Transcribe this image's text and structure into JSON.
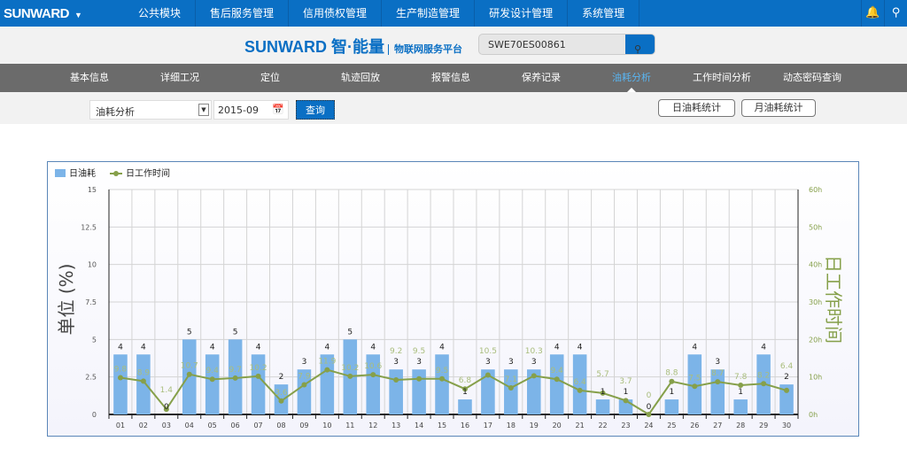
{
  "topbar": {
    "logo": "SUNWARD",
    "menu": [
      "公共模块",
      "售后服务管理",
      "信用债权管理",
      "生产制造管理",
      "研发设计管理",
      "系统管理"
    ]
  },
  "header": {
    "brand": "SUNWARD 智·能量",
    "platform": "物联网服务平台",
    "search_value": "SWE70ES00861"
  },
  "subnav": {
    "items": [
      "基本信息",
      "详细工况",
      "定位",
      "轨迹回放",
      "报警信息",
      "保养记录",
      "油耗分析",
      "工作时间分析",
      "动态密码查询"
    ],
    "active": 6
  },
  "filter": {
    "type": "油耗分析",
    "date": "2015-09",
    "query": "查询",
    "daily": "日油耗统计",
    "monthly": "月油耗统计"
  },
  "colors": {
    "bar": "#7cb4e8",
    "line": "#86a04a",
    "accent": "#0a6fc4"
  },
  "chart_data": {
    "type": "bar+line",
    "categories": [
      "01",
      "02",
      "03",
      "04",
      "05",
      "06",
      "07",
      "08",
      "09",
      "10",
      "11",
      "12",
      "13",
      "14",
      "15",
      "16",
      "17",
      "18",
      "19",
      "20",
      "21",
      "22",
      "23",
      "24",
      "25",
      "26",
      "27",
      "28",
      "29",
      "30"
    ],
    "series": [
      {
        "name": "日油耗",
        "type": "bar",
        "axis": "left",
        "values": [
          4,
          4,
          0,
          5,
          4,
          5,
          4,
          2,
          3,
          4,
          5,
          4,
          3,
          3,
          4,
          1,
          3,
          3,
          3,
          4,
          4,
          1,
          1,
          0,
          1,
          4,
          3,
          1,
          4,
          2
        ]
      },
      {
        "name": "日工作时间",
        "type": "line",
        "axis": "right",
        "values": [
          9.8,
          8.9,
          1.4,
          10.7,
          9.4,
          9.7,
          10.2,
          3.6,
          7.9,
          11.9,
          10.2,
          10.6,
          9.2,
          9.5,
          9.5,
          6.8,
          10.5,
          7.1,
          10.3,
          9.4,
          6.4,
          5.7,
          3.7,
          0,
          8.8,
          7.5,
          8.7,
          7.8,
          8.2,
          6.4
        ]
      }
    ],
    "ylabel": "单位 (%)",
    "y2label": "日工作时间",
    "ylim": [
      0,
      15
    ],
    "yticks": [
      "0",
      "2.5",
      "5",
      "7.5",
      "10",
      "12.5",
      "15"
    ],
    "y2lim": [
      0,
      60
    ],
    "y2ticks": [
      "0h",
      "10h",
      "20h",
      "30h",
      "40h",
      "50h",
      "60h"
    ],
    "grid": true,
    "legend": "top-left"
  }
}
